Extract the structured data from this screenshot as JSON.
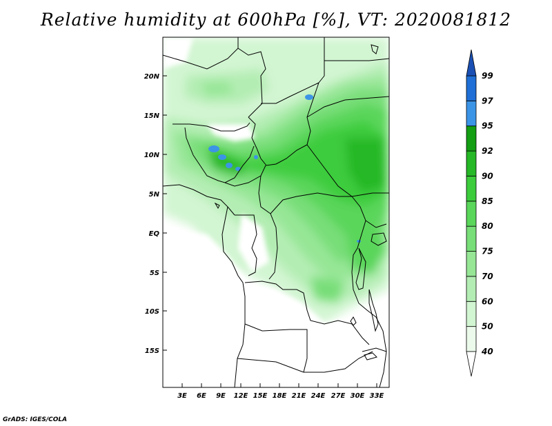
{
  "title": "Relative humidity at 600hPa [%], VT: 2020081812",
  "credit": "GrADS: IGES/COLA",
  "map": {
    "lat_ticks": [
      "20N",
      "15N",
      "10N",
      "5N",
      "EQ",
      "5S",
      "10S",
      "15S"
    ],
    "lon_ticks": [
      "3E",
      "6E",
      "9E",
      "12E",
      "15E",
      "18E",
      "21E",
      "24E",
      "27E",
      "30E",
      "33E"
    ]
  },
  "colorbar": {
    "levels": [
      "40",
      "50",
      "60",
      "70",
      "75",
      "80",
      "85",
      "90",
      "92",
      "95",
      "97",
      "99"
    ],
    "colors": [
      "#ebfaeb",
      "#d2f5d2",
      "#b4edb4",
      "#96e696",
      "#78de78",
      "#5ad65a",
      "#3ccc3c",
      "#26b826",
      "#139e13",
      "#3c94e6",
      "#1f6fd6",
      "#1a50b4"
    ],
    "over_color": "#1a50b4",
    "under_color": "#ffffff"
  }
}
